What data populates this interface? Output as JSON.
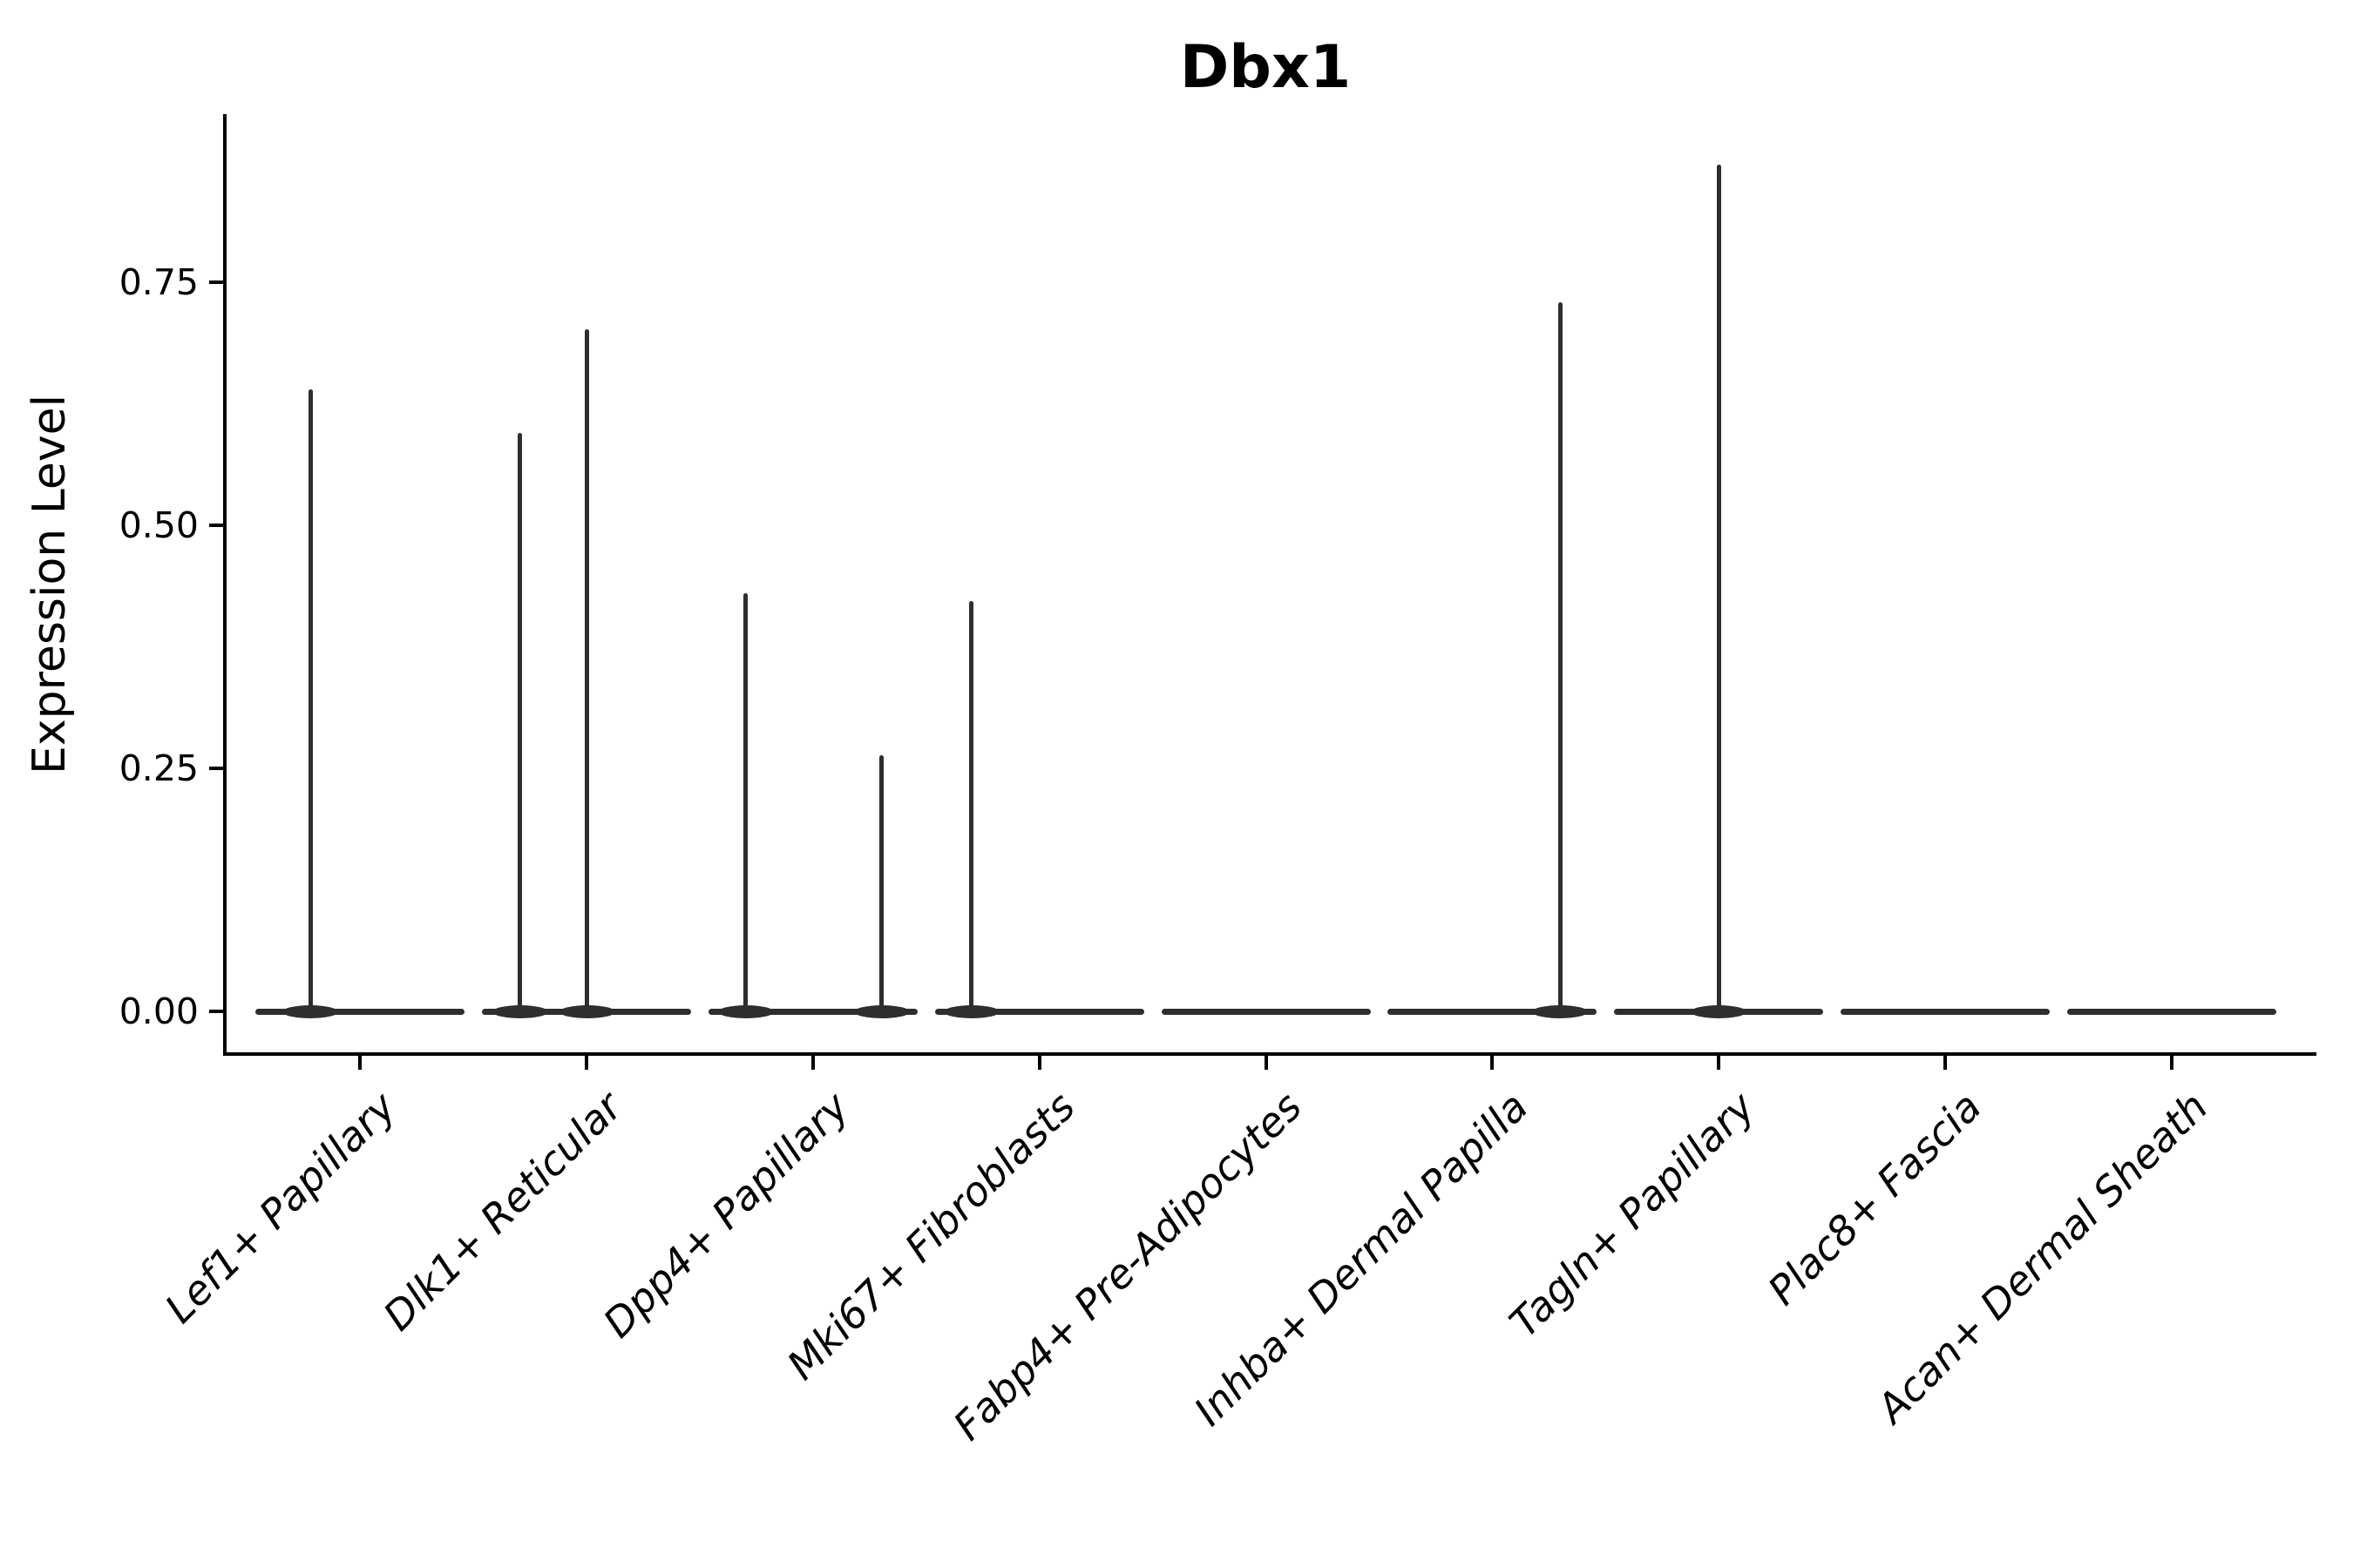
{
  "title": "Dbx1",
  "y_axis": {
    "label": "Expression Level",
    "tick_labels": [
      "0.00",
      "0.25",
      "0.50",
      "0.75"
    ],
    "tick_values": [
      0,
      0.25,
      0.5,
      0.75
    ]
  },
  "x_axis": {
    "categories": [
      "Lef1+ Papillary",
      "Dlk1+ Reticular",
      "Dpp4+ Papillary",
      "Mki67+ Fibroblasts",
      "Fabp4+ Pre-Adipocytes",
      "Inhba+ Dermal Papilla",
      "Tagln+ Papillary",
      "Plac8+ Fascia",
      "Acan+ Dermal Sheath"
    ]
  },
  "colors": {
    "violin": "#2e2e2e",
    "axis": "#000000",
    "text": "#000000",
    "background": "#ffffff"
  },
  "chart_data": {
    "type": "violin",
    "title": "Dbx1",
    "xlabel": "",
    "ylabel": "Expression Level",
    "categories": [
      "Lef1+ Papillary",
      "Dlk1+ Reticular",
      "Dpp4+ Papillary",
      "Mki67+ Fibroblasts",
      "Fabp4+ Pre-Adipocytes",
      "Inhba+ Dermal Papilla",
      "Tagln+ Papillary",
      "Plac8+ Fascia",
      "Acan+ Dermal Sheath"
    ],
    "yticks": [
      0,
      0.25,
      0.5,
      0.75
    ],
    "ylim": [
      -0.044,
      0.921
    ],
    "grid": false,
    "legend": "none",
    "description": "Violin plot of Dbx1 expression; every cluster has a flat dense base at 0 with thin spikes up to the maximum expressing cells.",
    "violins": [
      {
        "category": "Lef1+ Papillary",
        "baseline_value": 0,
        "spikes": [
          {
            "dx": -0.219,
            "value": 0.64
          }
        ]
      },
      {
        "category": "Dlk1+ Reticular",
        "baseline_value": 0,
        "spikes": [
          {
            "dx": -0.292,
            "value": 0.595
          },
          {
            "dx": 0.004,
            "value": 0.702
          }
        ]
      },
      {
        "category": "Dpp4+ Papillary",
        "baseline_value": 0,
        "spikes": [
          {
            "dx": -0.296,
            "value": 0.43
          },
          {
            "dx": 0.304,
            "value": 0.263
          }
        ]
      },
      {
        "category": "Mki67+ Fibroblasts",
        "baseline_value": 0,
        "spikes": [
          {
            "dx": -0.3,
            "value": 0.422
          }
        ]
      },
      {
        "category": "Fabp4+ Pre-Adipocytes",
        "baseline_value": 0,
        "spikes": []
      },
      {
        "category": "Inhba+ Dermal Papilla",
        "baseline_value": 0,
        "spikes": [
          {
            "dx": 0.3,
            "value": 0.729
          }
        ]
      },
      {
        "category": "Tagln+ Papillary",
        "baseline_value": 0,
        "spikes": [
          {
            "dx": 0.0,
            "value": 0.871
          }
        ]
      },
      {
        "category": "Plac8+ Fascia",
        "baseline_value": 0,
        "spikes": []
      },
      {
        "category": "Acan+ Dermal Sheath",
        "baseline_value": 0,
        "spikes": []
      }
    ]
  }
}
